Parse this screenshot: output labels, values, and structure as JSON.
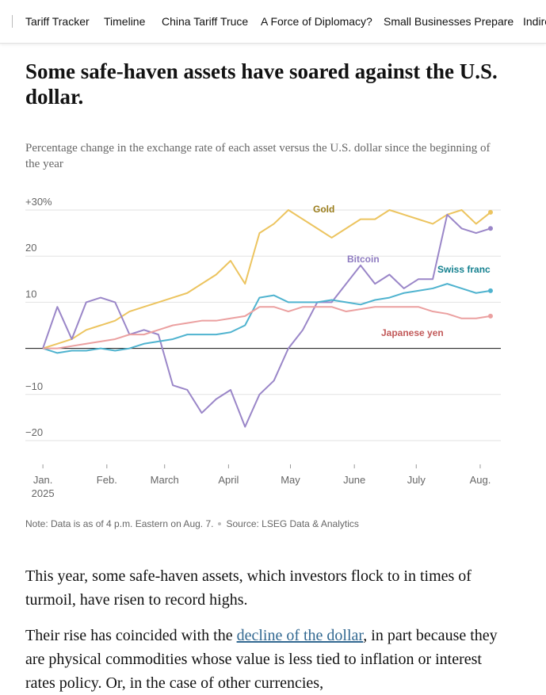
{
  "nav": {
    "items": [
      "Tariff Tracker",
      "Timeline",
      "China Tariff Truce",
      "A Force of Diplomacy?",
      "Small Businesses Prepare",
      "Indire"
    ]
  },
  "headline": "Some safe-haven assets have soared against the U.S. dollar.",
  "chart_data": {
    "type": "line",
    "subtitle": "Percentage change in the exchange rate of each asset versus the U.S. dollar since the beginning of the year",
    "x": [
      0,
      7,
      14,
      21,
      28,
      35,
      42,
      49,
      56,
      63,
      70,
      77,
      84,
      91,
      98,
      105,
      112,
      119,
      126,
      133,
      140,
      147,
      154,
      161,
      168,
      175,
      182,
      189,
      196,
      203,
      210,
      217
    ],
    "xlim": [
      -8.5,
      222
    ],
    "xticks": [
      {
        "value": 0,
        "label": "Jan."
      },
      {
        "value": 31,
        "label": "Feb."
      },
      {
        "value": 59,
        "label": "March"
      },
      {
        "value": 90,
        "label": "April"
      },
      {
        "value": 120,
        "label": "May"
      },
      {
        "value": 151,
        "label": "June"
      },
      {
        "value": 181,
        "label": "July"
      },
      {
        "value": 212,
        "label": "Aug."
      }
    ],
    "xtick_year": "2025",
    "ylim": [
      -20,
      30
    ],
    "yticks": [
      {
        "value": 30,
        "label": "+30%"
      },
      20,
      10,
      {
        "value": -10,
        "label": "−10"
      },
      {
        "value": -20,
        "label": "−20"
      }
    ],
    "zero_line": true,
    "grid": true,
    "series": [
      {
        "name": "Gold",
        "color": "#ecc45f",
        "label_color": "#9a7d1c",
        "values": [
          0,
          1,
          2,
          4,
          5,
          6,
          8,
          9,
          10,
          11,
          12,
          14,
          16,
          19,
          14,
          25,
          27,
          30,
          28,
          26,
          24,
          26,
          28,
          28,
          30,
          29,
          28,
          27,
          29,
          30,
          27,
          29.5
        ]
      },
      {
        "name": "Bitcoin",
        "color": "#9a86c8",
        "label_color": "#8e7bc0",
        "values": [
          0,
          9,
          2,
          10,
          11,
          10,
          3,
          4,
          3,
          -8,
          -9,
          -14,
          -11,
          -9,
          -17,
          -10,
          -7,
          0,
          4,
          10,
          10,
          14,
          18,
          14,
          16,
          13,
          15,
          15,
          29,
          26,
          25,
          26
        ]
      },
      {
        "name": "Swiss franc",
        "color": "#4fb3cf",
        "label_color": "#14808f",
        "values": [
          0,
          -1,
          -0.5,
          -0.5,
          0,
          -0.5,
          0,
          1,
          1.5,
          2,
          3,
          3,
          3,
          3.5,
          5,
          11,
          11.5,
          10,
          10,
          10,
          10.5,
          10,
          9.5,
          10.5,
          11,
          12,
          12.5,
          13,
          14,
          13,
          12,
          12.5
        ]
      },
      {
        "name": "Japanese yen",
        "color": "#eba0a0",
        "label_color": "#c25a5a",
        "values": [
          0,
          0,
          0.5,
          1,
          1.5,
          2,
          3,
          3,
          4,
          5,
          5.5,
          6,
          6,
          6.5,
          7,
          9,
          9,
          8,
          9,
          9,
          9,
          8,
          8.5,
          9,
          9,
          9,
          9,
          8,
          7.5,
          6.5,
          6.5,
          7
        ]
      }
    ],
    "note": "Note: Data is as of 4 p.m. Eastern on Aug. 7.",
    "source": "Source: LSEG Data & Analytics"
  },
  "article": {
    "paragraph1": "This year, some safe-haven assets, which investors flock to in times of turmoil, have risen to record highs.",
    "paragraph2": {
      "before": "Their rise has coincided with the ",
      "link": "decline of the dollar",
      "after": ", in part because they are physical commodities whose value is less tied to inflation or interest rates policy. Or, in the case of other currencies,"
    }
  }
}
